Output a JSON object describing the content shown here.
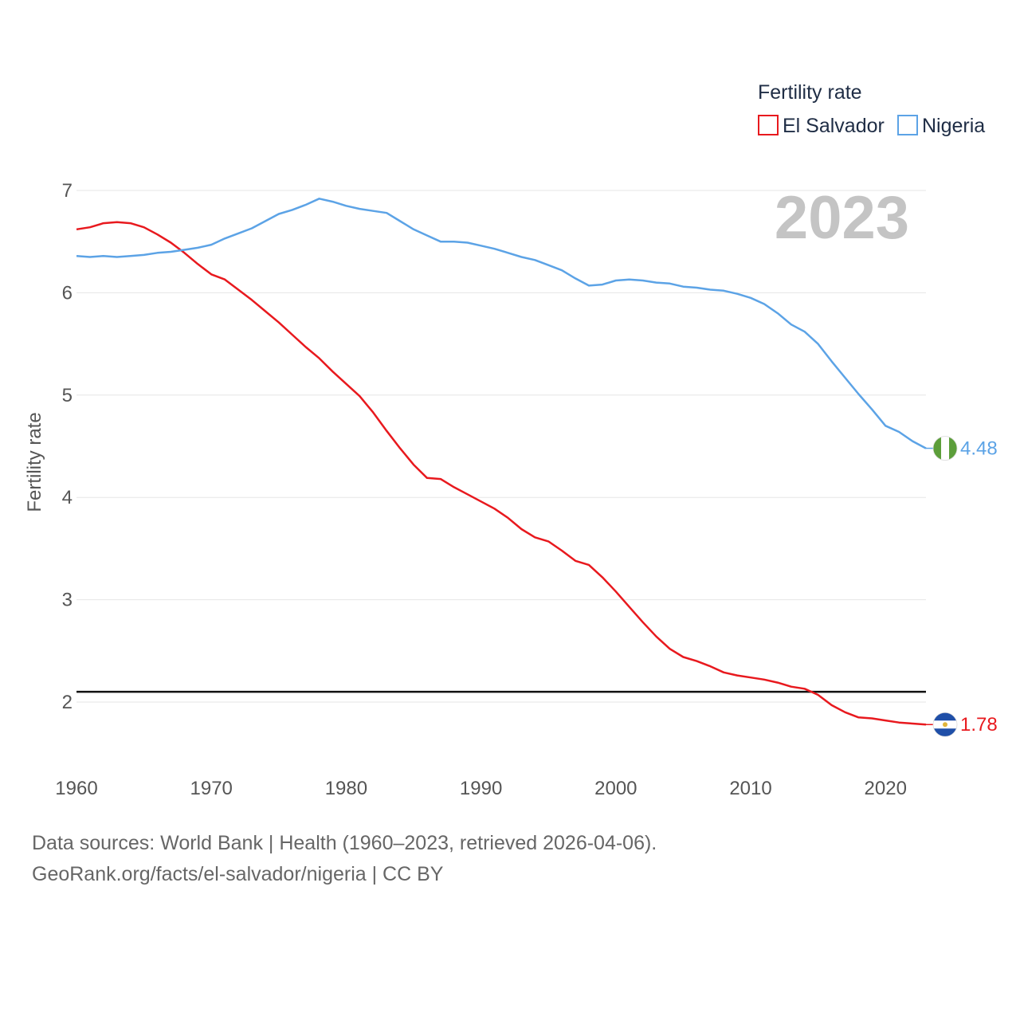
{
  "chart_data": {
    "type": "line",
    "title": "",
    "current_year": "2023",
    "ylabel": "Fertility rate",
    "xlabel": "",
    "xlim": [
      1960,
      2023
    ],
    "ylim": [
      1.5,
      7.2
    ],
    "x_ticks": [
      1960,
      1970,
      1980,
      1990,
      2000,
      2010,
      2020
    ],
    "y_ticks": [
      2,
      3,
      4,
      5,
      6,
      7
    ],
    "grid": true,
    "reference_line": {
      "y": 2.1
    },
    "legend": {
      "title": "Fertility rate",
      "placement": "top-right"
    },
    "series": [
      {
        "name": "El Salvador",
        "color": "#e8191e",
        "end_label": "1.78",
        "flag_icon": "el-salvador-flag-icon",
        "x": [
          1960,
          1961,
          1962,
          1963,
          1964,
          1965,
          1966,
          1967,
          1968,
          1969,
          1970,
          1971,
          1972,
          1973,
          1974,
          1975,
          1976,
          1977,
          1978,
          1979,
          1980,
          1981,
          1982,
          1983,
          1984,
          1985,
          1986,
          1987,
          1988,
          1989,
          1990,
          1991,
          1992,
          1993,
          1994,
          1995,
          1996,
          1997,
          1998,
          1999,
          2000,
          2001,
          2002,
          2003,
          2004,
          2005,
          2006,
          2007,
          2008,
          2009,
          2010,
          2011,
          2012,
          2013,
          2014,
          2015,
          2016,
          2017,
          2018,
          2019,
          2020,
          2021,
          2022,
          2023
        ],
        "values": [
          6.62,
          6.64,
          6.68,
          6.69,
          6.68,
          6.64,
          6.57,
          6.49,
          6.39,
          6.28,
          6.18,
          6.13,
          6.03,
          5.93,
          5.82,
          5.71,
          5.59,
          5.47,
          5.36,
          5.23,
          5.11,
          4.99,
          4.83,
          4.65,
          4.48,
          4.32,
          4.19,
          4.18,
          4.1,
          4.03,
          3.96,
          3.89,
          3.8,
          3.69,
          3.61,
          3.57,
          3.48,
          3.38,
          3.34,
          3.22,
          3.08,
          2.93,
          2.78,
          2.64,
          2.52,
          2.44,
          2.4,
          2.35,
          2.29,
          2.26,
          2.24,
          2.22,
          2.19,
          2.15,
          2.13,
          2.07,
          1.97,
          1.9,
          1.85,
          1.84,
          1.82,
          1.8,
          1.79,
          1.78
        ]
      },
      {
        "name": "Nigeria",
        "color": "#5ca3e6",
        "end_label": "4.48",
        "flag_icon": "nigeria-flag-icon",
        "x": [
          1960,
          1961,
          1962,
          1963,
          1964,
          1965,
          1966,
          1967,
          1968,
          1969,
          1970,
          1971,
          1972,
          1973,
          1974,
          1975,
          1976,
          1977,
          1978,
          1979,
          1980,
          1981,
          1982,
          1983,
          1984,
          1985,
          1986,
          1987,
          1988,
          1989,
          1990,
          1991,
          1992,
          1993,
          1994,
          1995,
          1996,
          1997,
          1998,
          1999,
          2000,
          2001,
          2002,
          2003,
          2004,
          2005,
          2006,
          2007,
          2008,
          2009,
          2010,
          2011,
          2012,
          2013,
          2014,
          2015,
          2016,
          2017,
          2018,
          2019,
          2020,
          2021,
          2022,
          2023
        ],
        "values": [
          6.36,
          6.35,
          6.36,
          6.35,
          6.36,
          6.37,
          6.39,
          6.4,
          6.42,
          6.44,
          6.47,
          6.53,
          6.58,
          6.63,
          6.7,
          6.77,
          6.81,
          6.86,
          6.92,
          6.89,
          6.85,
          6.82,
          6.8,
          6.78,
          6.7,
          6.62,
          6.56,
          6.5,
          6.5,
          6.49,
          6.46,
          6.43,
          6.39,
          6.35,
          6.32,
          6.27,
          6.22,
          6.14,
          6.07,
          6.08,
          6.12,
          6.13,
          6.12,
          6.1,
          6.09,
          6.06,
          6.05,
          6.03,
          6.02,
          5.99,
          5.95,
          5.89,
          5.8,
          5.69,
          5.62,
          5.5,
          5.33,
          5.17,
          5.01,
          4.86,
          4.7,
          4.64,
          4.55,
          4.48
        ]
      }
    ]
  },
  "source": {
    "line1": "Data sources: World Bank | Health (1960–2023, retrieved 2026-04-06).",
    "line2": "GeoRank.org/facts/el-salvador/nigeria | CC BY"
  }
}
